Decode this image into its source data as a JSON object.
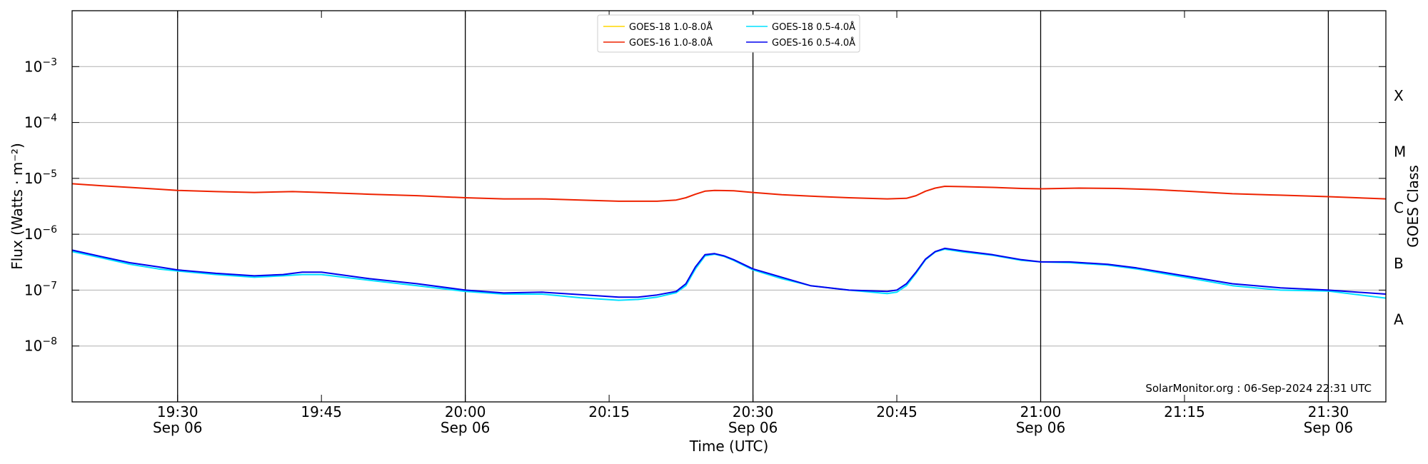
{
  "chart_data": {
    "type": "line",
    "ylabel": "Flux (Watts · m⁻²)",
    "xlabel": "Time (UTC)",
    "y2label": "GOES Class",
    "yscale": "log",
    "ylim": [
      1e-09,
      0.01
    ],
    "xlim": [
      "19:19",
      "21:36"
    ],
    "grid": "horizontal at each decade",
    "y_ticks": [
      {
        "value": 1e-08,
        "base": "10",
        "exp": "−8"
      },
      {
        "value": 1e-07,
        "base": "10",
        "exp": "−7"
      },
      {
        "value": 1e-06,
        "base": "10",
        "exp": "−6"
      },
      {
        "value": 1e-05,
        "base": "10",
        "exp": "−5"
      },
      {
        "value": 0.0001,
        "base": "10",
        "exp": "−4"
      },
      {
        "value": 0.001,
        "base": "10",
        "exp": "−3"
      }
    ],
    "x_ticks": [
      {
        "time": "19:30",
        "line1": "19:30",
        "line2": "Sep 06",
        "major": true
      },
      {
        "time": "19:45",
        "line1": "19:45",
        "line2": "",
        "major": false
      },
      {
        "time": "20:00",
        "line1": "20:00",
        "line2": "Sep 06",
        "major": true
      },
      {
        "time": "20:15",
        "line1": "20:15",
        "line2": "",
        "major": false
      },
      {
        "time": "20:30",
        "line1": "20:30",
        "line2": "Sep 06",
        "major": true
      },
      {
        "time": "20:45",
        "line1": "20:45",
        "line2": "",
        "major": false
      },
      {
        "time": "21:00",
        "line1": "21:00",
        "line2": "Sep 06",
        "major": true
      },
      {
        "time": "21:15",
        "line1": "21:15",
        "line2": "",
        "major": false
      },
      {
        "time": "21:30",
        "line1": "21:30",
        "line2": "Sep 06",
        "major": true
      }
    ],
    "goes_classes": [
      {
        "label": "A",
        "value": 3e-08
      },
      {
        "label": "B",
        "value": 3e-07
      },
      {
        "label": "C",
        "value": 3e-06
      },
      {
        "label": "M",
        "value": 3e-05
      },
      {
        "label": "X",
        "value": 0.0003
      }
    ],
    "legend_position": "top-center",
    "series": [
      {
        "name": "GOES-18 1.0-8.0Å",
        "color": "#ffd700",
        "x": [],
        "y": []
      },
      {
        "name": "GOES-16 1.0-8.0Å",
        "color": "#ee2200",
        "x": [
          "19:19",
          "19:22",
          "19:25",
          "19:28",
          "19:30",
          "19:34",
          "19:38",
          "19:42",
          "19:45",
          "19:50",
          "19:55",
          "20:00",
          "20:04",
          "20:08",
          "20:12",
          "20:16",
          "20:20",
          "20:22",
          "20:23",
          "20:24",
          "20:25",
          "20:26",
          "20:28",
          "20:30",
          "20:33",
          "20:36",
          "20:40",
          "20:44",
          "20:46",
          "20:47",
          "20:48",
          "20:49",
          "20:50",
          "20:52",
          "20:55",
          "20:58",
          "21:00",
          "21:04",
          "21:08",
          "21:12",
          "21:16",
          "21:20",
          "21:25",
          "21:30",
          "21:36"
        ],
        "y": [
          8e-06,
          7.4e-06,
          6.9e-06,
          6.4e-06,
          6.1e-06,
          5.8e-06,
          5.6e-06,
          5.8e-06,
          5.6e-06,
          5.2e-06,
          4.9e-06,
          4.5e-06,
          4.3e-06,
          4.3e-06,
          4.1e-06,
          3.9e-06,
          3.9e-06,
          4.1e-06,
          4.5e-06,
          5.2e-06,
          5.9e-06,
          6.1e-06,
          6e-06,
          5.6e-06,
          5.1e-06,
          4.8e-06,
          4.5e-06,
          4.3e-06,
          4.4e-06,
          4.9e-06,
          5.9e-06,
          6.7e-06,
          7.2e-06,
          7.1e-06,
          6.9e-06,
          6.6e-06,
          6.5e-06,
          6.7e-06,
          6.6e-06,
          6.3e-06,
          5.8e-06,
          5.3e-06,
          5e-06,
          4.7e-06,
          4.3e-06
        ]
      },
      {
        "name": "GOES-18 0.5-4.0Å",
        "color": "#00e0ff",
        "x": [
          "19:19",
          "19:22",
          "19:25",
          "19:28",
          "19:30",
          "19:34",
          "19:38",
          "19:41",
          "19:43",
          "19:45",
          "19:50",
          "19:55",
          "20:00",
          "20:04",
          "20:08",
          "20:12",
          "20:16",
          "20:18",
          "20:20",
          "20:22",
          "20:23",
          "20:24",
          "20:25",
          "20:26",
          "20:27",
          "20:28",
          "20:30",
          "20:33",
          "20:36",
          "20:40",
          "20:44",
          "20:45",
          "20:46",
          "20:47",
          "20:48",
          "20:49",
          "20:50",
          "20:52",
          "20:55",
          "20:58",
          "21:00",
          "21:03",
          "21:07",
          "21:10",
          "21:15",
          "21:20",
          "21:25",
          "21:30",
          "21:36"
        ],
        "y": [
          4.9e-07,
          3.8e-07,
          2.9e-07,
          2.4e-07,
          2.2e-07,
          1.9e-07,
          1.7e-07,
          1.8e-07,
          1.9e-07,
          1.9e-07,
          1.5e-07,
          1.2e-07,
          9.5e-08,
          8.5e-08,
          8.5e-08,
          7.3e-08,
          6.6e-08,
          6.8e-08,
          7.5e-08,
          9e-08,
          1.2e-07,
          2.4e-07,
          4.1e-07,
          4.4e-07,
          4e-07,
          3.4e-07,
          2.3e-07,
          1.6e-07,
          1.2e-07,
          1e-07,
          8.7e-08,
          9.2e-08,
          1.2e-07,
          2e-07,
          3.5e-07,
          4.8e-07,
          5.4e-07,
          4.8e-07,
          4.2e-07,
          3.4e-07,
          3.2e-07,
          3.1e-07,
          2.8e-07,
          2.4e-07,
          1.7e-07,
          1.2e-07,
          1e-07,
          9.6e-08,
          7.2e-08
        ]
      },
      {
        "name": "GOES-16 0.5-4.0Å",
        "color": "#0000ee",
        "x": [
          "19:19",
          "19:22",
          "19:25",
          "19:28",
          "19:30",
          "19:34",
          "19:38",
          "19:41",
          "19:43",
          "19:45",
          "19:50",
          "19:55",
          "20:00",
          "20:04",
          "20:08",
          "20:12",
          "20:16",
          "20:18",
          "20:20",
          "20:22",
          "20:23",
          "20:24",
          "20:25",
          "20:26",
          "20:27",
          "20:28",
          "20:30",
          "20:33",
          "20:36",
          "20:40",
          "20:44",
          "20:45",
          "20:46",
          "20:47",
          "20:48",
          "20:49",
          "20:50",
          "20:52",
          "20:55",
          "20:58",
          "21:00",
          "21:03",
          "21:07",
          "21:10",
          "21:15",
          "21:20",
          "21:25",
          "21:30",
          "21:36"
        ],
        "y": [
          5.2e-07,
          4e-07,
          3.1e-07,
          2.6e-07,
          2.3e-07,
          2e-07,
          1.8e-07,
          1.9e-07,
          2.1e-07,
          2.1e-07,
          1.6e-07,
          1.3e-07,
          1e-07,
          8.9e-08,
          9.2e-08,
          8.3e-08,
          7.5e-08,
          7.5e-08,
          8.2e-08,
          9.5e-08,
          1.3e-07,
          2.6e-07,
          4.3e-07,
          4.5e-07,
          4.1e-07,
          3.5e-07,
          2.4e-07,
          1.7e-07,
          1.2e-07,
          1e-07,
          9.5e-08,
          1e-07,
          1.3e-07,
          2.1e-07,
          3.6e-07,
          4.9e-07,
          5.6e-07,
          5e-07,
          4.3e-07,
          3.5e-07,
          3.2e-07,
          3.2e-07,
          2.9e-07,
          2.5e-07,
          1.8e-07,
          1.3e-07,
          1.1e-07,
          1e-07,
          8.5e-08
        ]
      }
    ],
    "annotation": "SolarMonitor.org : 06-Sep-2024 22:31 UTC"
  }
}
